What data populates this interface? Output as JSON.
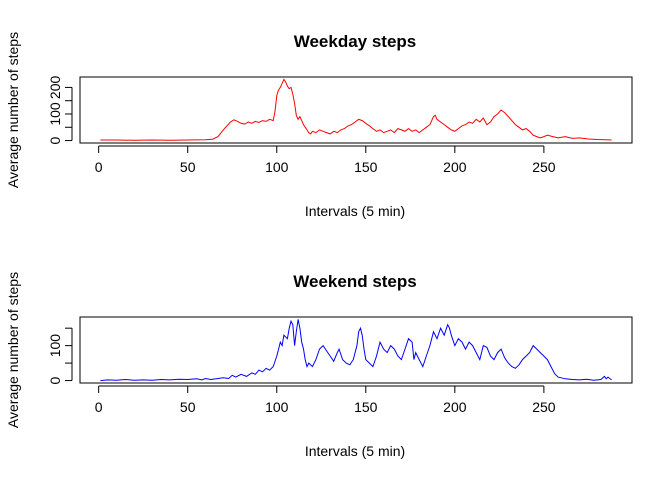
{
  "chart_data": [
    {
      "type": "line",
      "title": "Weekday steps",
      "xlabel": "Intervals (5 min)",
      "ylabel": "Average number of steps",
      "xlim": [
        1,
        288
      ],
      "ylim": [
        0,
        230
      ],
      "xticks": [
        0,
        50,
        100,
        150,
        200,
        250
      ],
      "yticks": [
        0,
        50,
        100,
        150,
        200
      ],
      "yticklabels": [
        "0",
        "",
        "100",
        "",
        "200"
      ],
      "grid": false,
      "legend": "none",
      "series": [
        {
          "color": "#ff0000",
          "points": [
            [
              1,
              2
            ],
            [
              10,
              2
            ],
            [
              20,
              1
            ],
            [
              30,
              2
            ],
            [
              40,
              1
            ],
            [
              50,
              2
            ],
            [
              60,
              3
            ],
            [
              64,
              5
            ],
            [
              67,
              15
            ],
            [
              70,
              40
            ],
            [
              72,
              55
            ],
            [
              74,
              70
            ],
            [
              76,
              78
            ],
            [
              78,
              72
            ],
            [
              80,
              65
            ],
            [
              82,
              62
            ],
            [
              84,
              70
            ],
            [
              86,
              65
            ],
            [
              88,
              72
            ],
            [
              90,
              68
            ],
            [
              92,
              75
            ],
            [
              94,
              72
            ],
            [
              96,
              80
            ],
            [
              98,
              75
            ],
            [
              99,
              110
            ],
            [
              100,
              170
            ],
            [
              101,
              190
            ],
            [
              102,
              200
            ],
            [
              103,
              215
            ],
            [
              104,
              230
            ],
            [
              105,
              220
            ],
            [
              106,
              205
            ],
            [
              107,
              195
            ],
            [
              108,
              200
            ],
            [
              109,
              175
            ],
            [
              110,
              140
            ],
            [
              111,
              95
            ],
            [
              112,
              80
            ],
            [
              113,
              90
            ],
            [
              114,
              75
            ],
            [
              115,
              60
            ],
            [
              116,
              50
            ],
            [
              117,
              40
            ],
            [
              118,
              30
            ],
            [
              119,
              25
            ],
            [
              120,
              35
            ],
            [
              122,
              30
            ],
            [
              124,
              40
            ],
            [
              126,
              35
            ],
            [
              128,
              30
            ],
            [
              130,
              25
            ],
            [
              132,
              35
            ],
            [
              134,
              30
            ],
            [
              136,
              40
            ],
            [
              138,
              45
            ],
            [
              140,
              55
            ],
            [
              142,
              60
            ],
            [
              144,
              70
            ],
            [
              146,
              80
            ],
            [
              148,
              75
            ],
            [
              150,
              65
            ],
            [
              152,
              55
            ],
            [
              154,
              45
            ],
            [
              156,
              35
            ],
            [
              158,
              40
            ],
            [
              160,
              30
            ],
            [
              162,
              35
            ],
            [
              164,
              40
            ],
            [
              166,
              30
            ],
            [
              168,
              45
            ],
            [
              170,
              40
            ],
            [
              172,
              35
            ],
            [
              174,
              45
            ],
            [
              176,
              35
            ],
            [
              178,
              40
            ],
            [
              180,
              30
            ],
            [
              182,
              40
            ],
            [
              184,
              50
            ],
            [
              186,
              60
            ],
            [
              188,
              90
            ],
            [
              189,
              95
            ],
            [
              190,
              80
            ],
            [
              192,
              70
            ],
            [
              194,
              60
            ],
            [
              196,
              50
            ],
            [
              198,
              40
            ],
            [
              200,
              35
            ],
            [
              202,
              45
            ],
            [
              204,
              55
            ],
            [
              206,
              60
            ],
            [
              208,
              70
            ],
            [
              210,
              65
            ],
            [
              212,
              80
            ],
            [
              214,
              70
            ],
            [
              216,
              85
            ],
            [
              218,
              60
            ],
            [
              220,
              70
            ],
            [
              222,
              90
            ],
            [
              224,
              100
            ],
            [
              226,
              115
            ],
            [
              228,
              105
            ],
            [
              230,
              90
            ],
            [
              232,
              75
            ],
            [
              234,
              60
            ],
            [
              236,
              50
            ],
            [
              238,
              40
            ],
            [
              240,
              45
            ],
            [
              242,
              35
            ],
            [
              244,
              20
            ],
            [
              246,
              15
            ],
            [
              248,
              10
            ],
            [
              250,
              15
            ],
            [
              252,
              20
            ],
            [
              255,
              15
            ],
            [
              258,
              10
            ],
            [
              262,
              15
            ],
            [
              266,
              8
            ],
            [
              270,
              10
            ],
            [
              275,
              6
            ],
            [
              280,
              4
            ],
            [
              285,
              3
            ],
            [
              288,
              2
            ]
          ]
        }
      ]
    },
    {
      "type": "line",
      "title": "Weekend steps",
      "xlabel": "Intervals (5 min)",
      "ylabel": "Average number of steps",
      "xlim": [
        1,
        288
      ],
      "ylim": [
        0,
        175
      ],
      "xticks": [
        0,
        50,
        100,
        150,
        200,
        250
      ],
      "yticks": [
        0,
        50,
        100,
        150
      ],
      "yticklabels": [
        "0",
        "",
        "100",
        ""
      ],
      "grid": false,
      "legend": "none",
      "series": [
        {
          "color": "#0000ff",
          "points": [
            [
              1,
              0
            ],
            [
              5,
              2
            ],
            [
              10,
              1
            ],
            [
              15,
              3
            ],
            [
              20,
              1
            ],
            [
              25,
              2
            ],
            [
              30,
              1
            ],
            [
              35,
              3
            ],
            [
              40,
              2
            ],
            [
              45,
              4
            ],
            [
              50,
              3
            ],
            [
              55,
              5
            ],
            [
              58,
              2
            ],
            [
              60,
              6
            ],
            [
              63,
              3
            ],
            [
              66,
              5
            ],
            [
              70,
              8
            ],
            [
              73,
              6
            ],
            [
              75,
              15
            ],
            [
              77,
              10
            ],
            [
              80,
              18
            ],
            [
              83,
              12
            ],
            [
              86,
              22
            ],
            [
              88,
              18
            ],
            [
              90,
              30
            ],
            [
              92,
              25
            ],
            [
              94,
              35
            ],
            [
              96,
              30
            ],
            [
              98,
              40
            ],
            [
              100,
              70
            ],
            [
              102,
              110
            ],
            [
              103,
              100
            ],
            [
              104,
              130
            ],
            [
              106,
              120
            ],
            [
              107,
              150
            ],
            [
              108,
              170
            ],
            [
              109,
              160
            ],
            [
              110,
              100
            ],
            [
              111,
              140
            ],
            [
              112,
              175
            ],
            [
              113,
              150
            ],
            [
              114,
              110
            ],
            [
              115,
              90
            ],
            [
              116,
              60
            ],
            [
              117,
              40
            ],
            [
              118,
              50
            ],
            [
              120,
              40
            ],
            [
              122,
              60
            ],
            [
              124,
              90
            ],
            [
              126,
              100
            ],
            [
              128,
              85
            ],
            [
              130,
              70
            ],
            [
              132,
              55
            ],
            [
              134,
              80
            ],
            [
              135,
              90
            ],
            [
              137,
              60
            ],
            [
              139,
              50
            ],
            [
              141,
              45
            ],
            [
              143,
              60
            ],
            [
              145,
              100
            ],
            [
              146,
              140
            ],
            [
              147,
              150
            ],
            [
              148,
              130
            ],
            [
              149,
              90
            ],
            [
              150,
              60
            ],
            [
              152,
              50
            ],
            [
              154,
              40
            ],
            [
              156,
              70
            ],
            [
              158,
              110
            ],
            [
              160,
              90
            ],
            [
              162,
              80
            ],
            [
              164,
              100
            ],
            [
              166,
              90
            ],
            [
              168,
              70
            ],
            [
              170,
              60
            ],
            [
              172,
              90
            ],
            [
              174,
              120
            ],
            [
              176,
              110
            ],
            [
              177,
              60
            ],
            [
              178,
              80
            ],
            [
              180,
              60
            ],
            [
              182,
              40
            ],
            [
              184,
              70
            ],
            [
              186,
              100
            ],
            [
              188,
              140
            ],
            [
              190,
              120
            ],
            [
              192,
              150
            ],
            [
              194,
              130
            ],
            [
              196,
              160
            ],
            [
              197,
              150
            ],
            [
              198,
              130
            ],
            [
              200,
              100
            ],
            [
              202,
              120
            ],
            [
              204,
              110
            ],
            [
              206,
              90
            ],
            [
              208,
              110
            ],
            [
              210,
              100
            ],
            [
              212,
              80
            ],
            [
              214,
              60
            ],
            [
              216,
              100
            ],
            [
              218,
              95
            ],
            [
              220,
              70
            ],
            [
              222,
              60
            ],
            [
              224,
              80
            ],
            [
              226,
              90
            ],
            [
              228,
              65
            ],
            [
              230,
              50
            ],
            [
              232,
              40
            ],
            [
              234,
              35
            ],
            [
              236,
              45
            ],
            [
              238,
              60
            ],
            [
              240,
              70
            ],
            [
              242,
              80
            ],
            [
              244,
              100
            ],
            [
              246,
              90
            ],
            [
              248,
              80
            ],
            [
              250,
              70
            ],
            [
              252,
              60
            ],
            [
              254,
              40
            ],
            [
              256,
              20
            ],
            [
              258,
              10
            ],
            [
              262,
              5
            ],
            [
              266,
              3
            ],
            [
              270,
              2
            ],
            [
              274,
              4
            ],
            [
              278,
              1
            ],
            [
              282,
              3
            ],
            [
              284,
              12
            ],
            [
              285,
              5
            ],
            [
              286,
              10
            ],
            [
              288,
              2
            ]
          ]
        }
      ]
    }
  ]
}
